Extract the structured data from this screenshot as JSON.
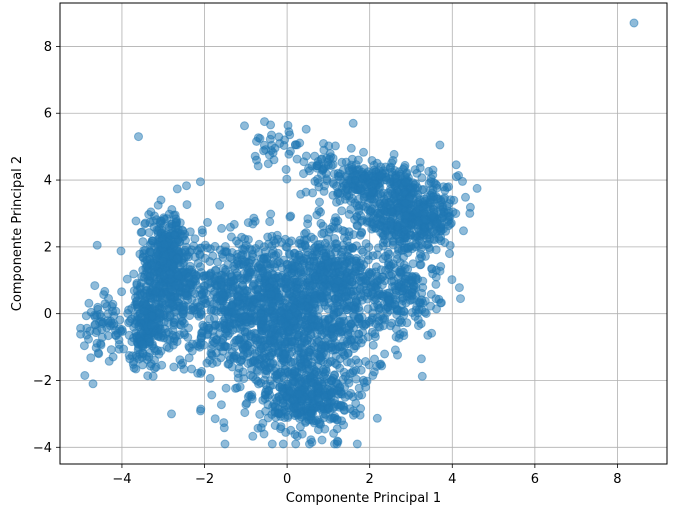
{
  "chart_data": {
    "type": "scatter",
    "xlabel": "Componente Principal 1",
    "ylabel": "Componente Principal 2",
    "xlim": [
      -5.5,
      9.2
    ],
    "ylim": [
      -4.5,
      9.3
    ],
    "xticks": [
      -4,
      -2,
      0,
      2,
      4,
      6,
      8
    ],
    "yticks": [
      -4,
      -2,
      0,
      2,
      4,
      6,
      8
    ],
    "grid": true,
    "marker_color": "#1f77b4",
    "marker_alpha": 0.5,
    "clusters": [
      {
        "cx": 0.2,
        "cy": -0.4,
        "sx": 1.1,
        "sy": 1.3,
        "n": 1100
      },
      {
        "cx": -1.0,
        "cy": 0.6,
        "sx": 1.0,
        "sy": 0.9,
        "n": 600
      },
      {
        "cx": 0.5,
        "cy": -2.6,
        "sx": 0.5,
        "sy": 0.5,
        "n": 300
      },
      {
        "cx": -2.9,
        "cy": 1.5,
        "sx": 0.35,
        "sy": 0.8,
        "n": 450
      },
      {
        "cx": -3.4,
        "cy": -0.4,
        "sx": 0.3,
        "sy": 0.6,
        "n": 250
      },
      {
        "cx": 3.0,
        "cy": 2.9,
        "sx": 0.6,
        "sy": 0.55,
        "n": 500
      },
      {
        "cx": 2.0,
        "cy": 3.9,
        "sx": 0.5,
        "sy": 0.35,
        "n": 220
      },
      {
        "cx": 1.3,
        "cy": 1.2,
        "sx": 0.45,
        "sy": 0.9,
        "n": 250
      },
      {
        "cx": 2.8,
        "cy": 0.6,
        "sx": 0.45,
        "sy": 0.5,
        "n": 180
      },
      {
        "cx": -4.5,
        "cy": -0.4,
        "sx": 0.25,
        "sy": 0.45,
        "n": 60
      },
      {
        "cx": -0.3,
        "cy": 4.9,
        "sx": 0.4,
        "sy": 0.35,
        "n": 40
      },
      {
        "cx": 0.9,
        "cy": 4.4,
        "sx": 0.35,
        "sy": 0.3,
        "n": 40
      }
    ],
    "outliers": [
      {
        "x": 8.4,
        "y": 8.7
      },
      {
        "x": 4.6,
        "y": 3.75
      },
      {
        "x": 3.7,
        "y": 5.05
      },
      {
        "x": 1.6,
        "y": 5.7
      },
      {
        "x": -3.6,
        "y": 5.3
      },
      {
        "x": -4.9,
        "y": -1.85
      },
      {
        "x": -4.7,
        "y": -2.1
      },
      {
        "x": -4.6,
        "y": 2.05
      },
      {
        "x": -2.8,
        "y": -3.0
      },
      {
        "x": -2.1,
        "y": 3.95
      },
      {
        "x": 1.9,
        "y": -2.2
      },
      {
        "x": 0.6,
        "y": -3.85
      },
      {
        "x": 4.2,
        "y": 0.45
      },
      {
        "x": 4.1,
        "y": 4.1
      },
      {
        "x": -0.4,
        "y": 5.65
      }
    ]
  }
}
